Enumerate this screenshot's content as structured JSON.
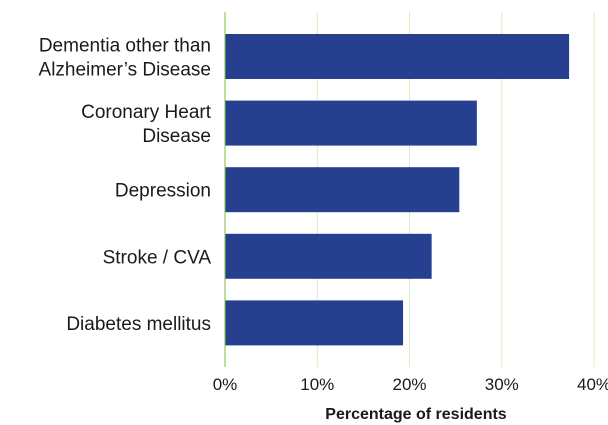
{
  "chart_data": {
    "type": "bar",
    "orientation": "horizontal",
    "categories": [
      [
        "Dementia other than",
        "Alzheimer’s Disease"
      ],
      [
        "Coronary Heart",
        "Disease"
      ],
      [
        "Depression"
      ],
      [
        "Stroke / CVA"
      ],
      [
        "Diabetes mellitus"
      ]
    ],
    "values": [
      37.3,
      27.3,
      25.4,
      22.4,
      19.3
    ],
    "xlabel": "Percentage of residents",
    "ylabel": "",
    "xlim": [
      0,
      40
    ],
    "xticks": [
      0,
      10,
      20,
      30,
      40
    ],
    "xtick_labels": [
      "0%",
      "10%",
      "20%",
      "30%",
      "40%"
    ],
    "grid": "vertical gridlines on",
    "legend": "none",
    "colors": {
      "bar": "#263f8f",
      "grid": "#d9ecc2",
      "axis": "#7fbf3f"
    }
  }
}
